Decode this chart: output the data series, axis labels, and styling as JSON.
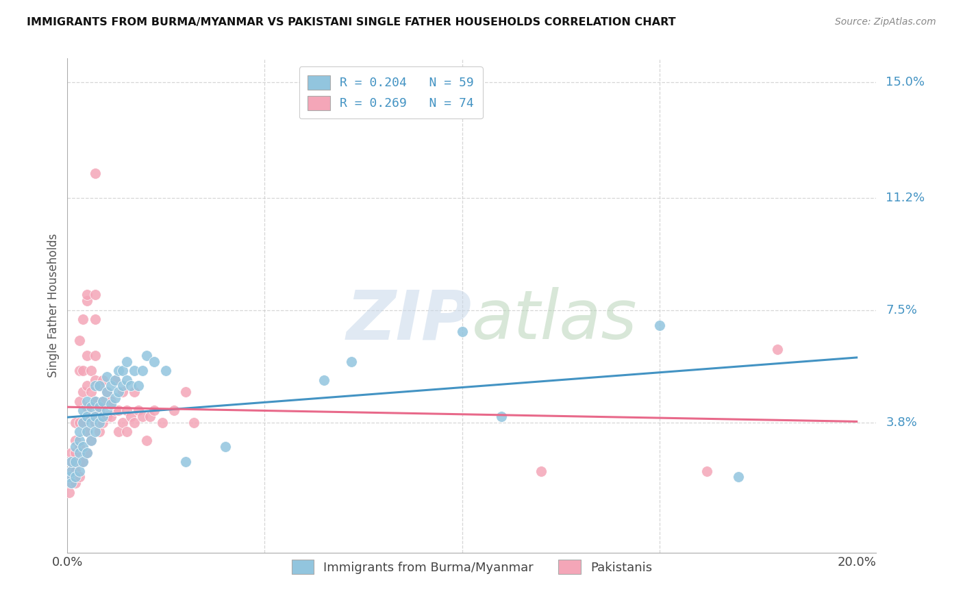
{
  "title": "IMMIGRANTS FROM BURMA/MYANMAR VS PAKISTANI SINGLE FATHER HOUSEHOLDS CORRELATION CHART",
  "source": "Source: ZipAtlas.com",
  "ylabel": "Single Father Households",
  "xlim": [
    0.0,
    0.205
  ],
  "ylim": [
    -0.005,
    0.158
  ],
  "ytick_labels": [
    "15.0%",
    "11.2%",
    "7.5%",
    "3.8%"
  ],
  "ytick_positions": [
    0.15,
    0.112,
    0.075,
    0.038
  ],
  "legend_entries": [
    {
      "label": "R = 0.204   N = 59",
      "color": "#92c5de"
    },
    {
      "label": "R = 0.269   N = 74",
      "color": "#f4a6b8"
    }
  ],
  "legend_bottom": [
    "Immigrants from Burma/Myanmar",
    "Pakistanis"
  ],
  "blue_color": "#92c5de",
  "pink_color": "#f4a6b8",
  "blue_line_color": "#4393c3",
  "pink_line_color": "#e8698a",
  "background_color": "#ffffff",
  "grid_color": "#cccccc",
  "blue_scatter": [
    [
      0.0005,
      0.02
    ],
    [
      0.001,
      0.022
    ],
    [
      0.001,
      0.018
    ],
    [
      0.001,
      0.025
    ],
    [
      0.002,
      0.02
    ],
    [
      0.002,
      0.025
    ],
    [
      0.002,
      0.03
    ],
    [
      0.003,
      0.022
    ],
    [
      0.003,
      0.028
    ],
    [
      0.003,
      0.032
    ],
    [
      0.003,
      0.035
    ],
    [
      0.004,
      0.025
    ],
    [
      0.004,
      0.03
    ],
    [
      0.004,
      0.038
    ],
    [
      0.004,
      0.042
    ],
    [
      0.005,
      0.028
    ],
    [
      0.005,
      0.035
    ],
    [
      0.005,
      0.04
    ],
    [
      0.005,
      0.045
    ],
    [
      0.006,
      0.032
    ],
    [
      0.006,
      0.038
    ],
    [
      0.006,
      0.043
    ],
    [
      0.007,
      0.035
    ],
    [
      0.007,
      0.04
    ],
    [
      0.007,
      0.045
    ],
    [
      0.007,
      0.05
    ],
    [
      0.008,
      0.038
    ],
    [
      0.008,
      0.043
    ],
    [
      0.008,
      0.05
    ],
    [
      0.009,
      0.04
    ],
    [
      0.009,
      0.045
    ],
    [
      0.01,
      0.042
    ],
    [
      0.01,
      0.048
    ],
    [
      0.01,
      0.053
    ],
    [
      0.011,
      0.044
    ],
    [
      0.011,
      0.05
    ],
    [
      0.012,
      0.046
    ],
    [
      0.012,
      0.052
    ],
    [
      0.013,
      0.048
    ],
    [
      0.013,
      0.055
    ],
    [
      0.014,
      0.05
    ],
    [
      0.014,
      0.055
    ],
    [
      0.015,
      0.052
    ],
    [
      0.015,
      0.058
    ],
    [
      0.016,
      0.05
    ],
    [
      0.017,
      0.055
    ],
    [
      0.018,
      0.05
    ],
    [
      0.019,
      0.055
    ],
    [
      0.02,
      0.06
    ],
    [
      0.022,
      0.058
    ],
    [
      0.025,
      0.055
    ],
    [
      0.03,
      0.025
    ],
    [
      0.04,
      0.03
    ],
    [
      0.065,
      0.052
    ],
    [
      0.072,
      0.058
    ],
    [
      0.1,
      0.068
    ],
    [
      0.11,
      0.04
    ],
    [
      0.15,
      0.07
    ],
    [
      0.17,
      0.02
    ]
  ],
  "pink_scatter": [
    [
      0.0005,
      0.015
    ],
    [
      0.0008,
      0.02
    ],
    [
      0.001,
      0.018
    ],
    [
      0.001,
      0.022
    ],
    [
      0.001,
      0.025
    ],
    [
      0.001,
      0.028
    ],
    [
      0.002,
      0.018
    ],
    [
      0.002,
      0.022
    ],
    [
      0.002,
      0.028
    ],
    [
      0.002,
      0.032
    ],
    [
      0.002,
      0.038
    ],
    [
      0.003,
      0.02
    ],
    [
      0.003,
      0.025
    ],
    [
      0.003,
      0.03
    ],
    [
      0.003,
      0.038
    ],
    [
      0.003,
      0.045
    ],
    [
      0.003,
      0.055
    ],
    [
      0.003,
      0.065
    ],
    [
      0.004,
      0.025
    ],
    [
      0.004,
      0.038
    ],
    [
      0.004,
      0.048
    ],
    [
      0.004,
      0.055
    ],
    [
      0.004,
      0.072
    ],
    [
      0.005,
      0.028
    ],
    [
      0.005,
      0.035
    ],
    [
      0.005,
      0.043
    ],
    [
      0.005,
      0.05
    ],
    [
      0.005,
      0.06
    ],
    [
      0.005,
      0.078
    ],
    [
      0.005,
      0.08
    ],
    [
      0.006,
      0.032
    ],
    [
      0.006,
      0.04
    ],
    [
      0.006,
      0.048
    ],
    [
      0.006,
      0.055
    ],
    [
      0.007,
      0.038
    ],
    [
      0.007,
      0.045
    ],
    [
      0.007,
      0.052
    ],
    [
      0.007,
      0.06
    ],
    [
      0.007,
      0.072
    ],
    [
      0.007,
      0.08
    ],
    [
      0.007,
      0.12
    ],
    [
      0.008,
      0.035
    ],
    [
      0.008,
      0.042
    ],
    [
      0.008,
      0.05
    ],
    [
      0.009,
      0.038
    ],
    [
      0.009,
      0.045
    ],
    [
      0.009,
      0.052
    ],
    [
      0.01,
      0.04
    ],
    [
      0.01,
      0.048
    ],
    [
      0.011,
      0.04
    ],
    [
      0.011,
      0.045
    ],
    [
      0.012,
      0.042
    ],
    [
      0.012,
      0.052
    ],
    [
      0.013,
      0.035
    ],
    [
      0.013,
      0.042
    ],
    [
      0.014,
      0.038
    ],
    [
      0.014,
      0.048
    ],
    [
      0.015,
      0.035
    ],
    [
      0.015,
      0.042
    ],
    [
      0.016,
      0.04
    ],
    [
      0.017,
      0.038
    ],
    [
      0.017,
      0.048
    ],
    [
      0.018,
      0.042
    ],
    [
      0.019,
      0.04
    ],
    [
      0.02,
      0.032
    ],
    [
      0.021,
      0.04
    ],
    [
      0.022,
      0.042
    ],
    [
      0.024,
      0.038
    ],
    [
      0.027,
      0.042
    ],
    [
      0.03,
      0.048
    ],
    [
      0.032,
      0.038
    ],
    [
      0.12,
      0.022
    ],
    [
      0.162,
      0.022
    ],
    [
      0.18,
      0.062
    ]
  ]
}
